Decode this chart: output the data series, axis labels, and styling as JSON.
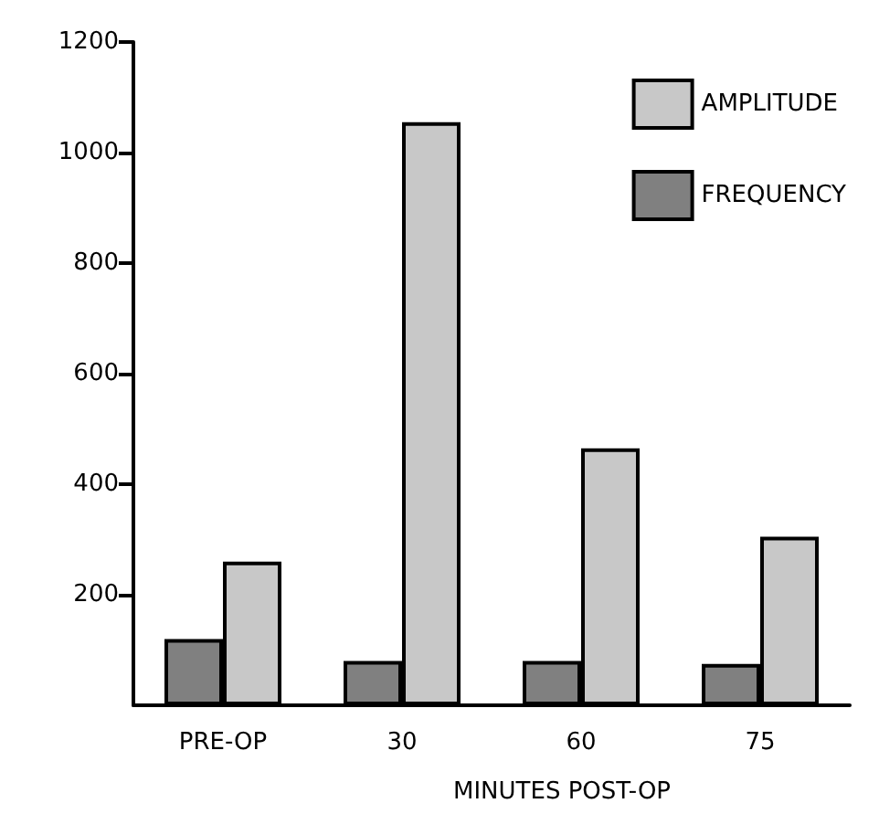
{
  "chart_data": {
    "type": "bar",
    "categories": [
      "PRE-OP",
      "30",
      "60",
      "75"
    ],
    "xlabel": "MINUTES POST-OP",
    "series": [
      {
        "name": "FREQUENCY",
        "color": "#808080",
        "values": [
          120,
          80,
          80,
          75
        ]
      },
      {
        "name": "AMPLITUDE",
        "color": "#c8c8c8",
        "values": [
          260,
          1055,
          465,
          305
        ]
      }
    ],
    "ylim": [
      0,
      1200
    ],
    "yticks": [
      200,
      400,
      600,
      800,
      1000,
      1200
    ],
    "grid": false,
    "legend": "top right"
  }
}
